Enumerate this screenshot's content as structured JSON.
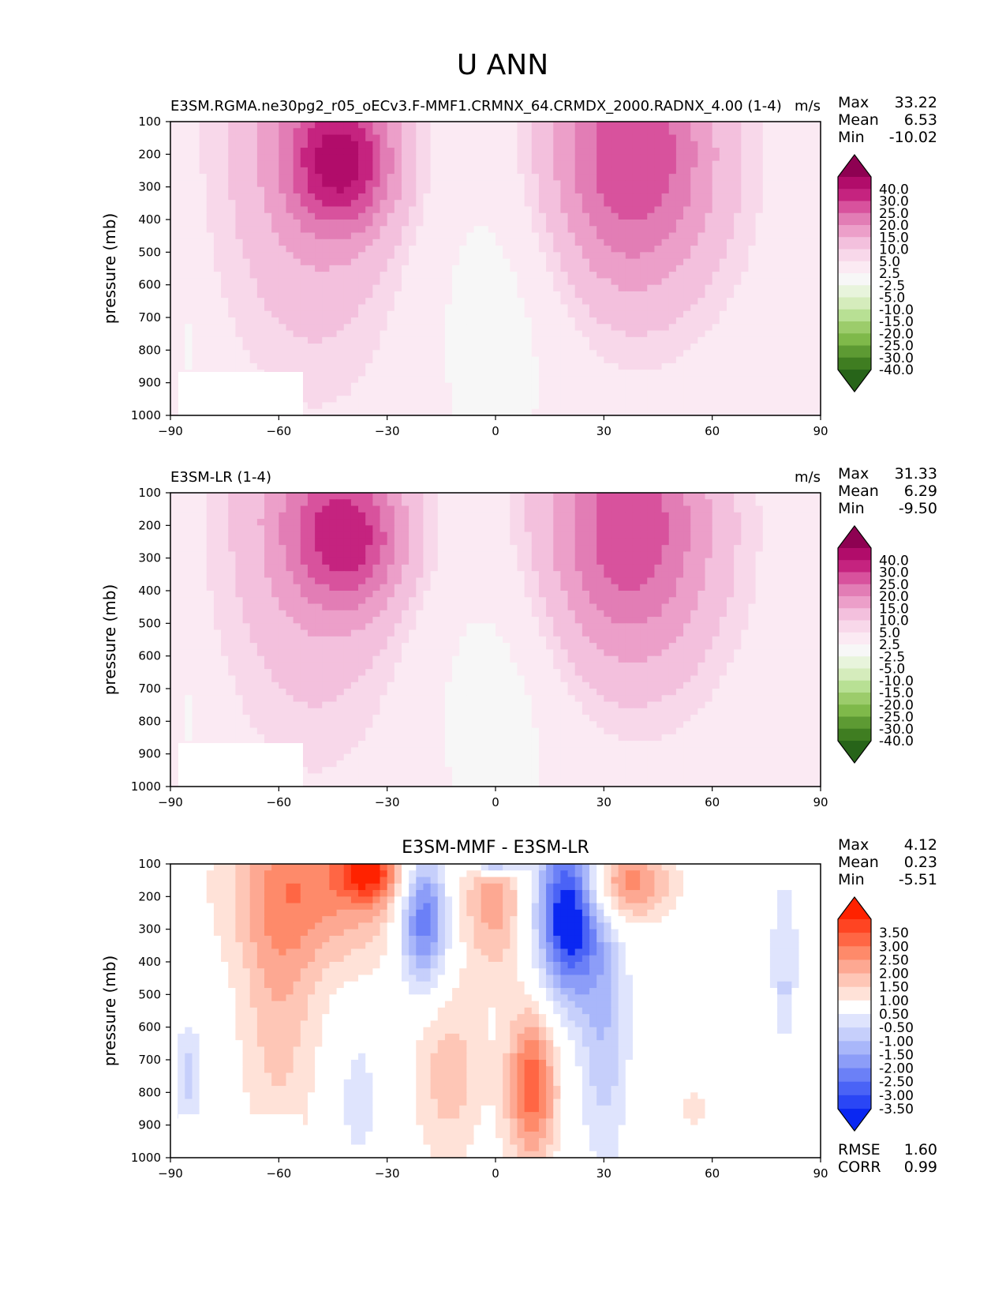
{
  "figure": {
    "title": "U ANN"
  },
  "chart_data": [
    {
      "type": "contour",
      "id": "test",
      "title": "E3SM.RGMA.ne30pg2_r05_oECv3.F-MMF1.CRMNX_64.CRMDX_2000.RADNX_4.00 (1-4)",
      "units": "m/s",
      "xlabel": "",
      "ylabel": "pressure (mb)",
      "xlim": [
        -90,
        90
      ],
      "ylim": [
        100,
        1000
      ],
      "xticks": [
        "−90",
        "−60",
        "−30",
        "0",
        "30",
        "60",
        "90"
      ],
      "yticks": [
        "100",
        "200",
        "300",
        "400",
        "500",
        "600",
        "700",
        "800",
        "900",
        "1000"
      ],
      "stats": [
        {
          "label": "Max",
          "value": "33.22"
        },
        {
          "label": "Mean",
          "value": "6.53"
        },
        {
          "label": "Min",
          "value": "-10.02"
        }
      ],
      "colorbar": {
        "labels": [
          "40.0",
          "30.0",
          "25.0",
          "20.0",
          "15.0",
          "10.0",
          "5.0",
          "2.5",
          "-2.5",
          "-5.0",
          "-10.0",
          "-15.0",
          "-20.0",
          "-25.0",
          "-30.0",
          "-40.0"
        ],
        "colors": [
          "#8e0152",
          "#b10c6a",
          "#c5237f",
          "#d8529d",
          "#e27db5",
          "#ec9fc9",
          "#f3c0dd",
          "#f8d8ea",
          "#fbeaf3",
          "#f7f7f7",
          "#e8f4dc",
          "#d5ecbc",
          "#b8e094",
          "#9ccc6b",
          "#7fb94a",
          "#5d9a33",
          "#3f7d21",
          "#276419"
        ]
      },
      "features": [
        {
          "lat": -50,
          "p": 100,
          "lat_sigma": 17,
          "p_sigma": 470,
          "value": 14,
          "p_bottom": 1000
        },
        {
          "lat": -42,
          "p": 230,
          "lat_sigma": 10,
          "p_sigma": 140,
          "value": 22
        },
        {
          "lat": 38,
          "p": 200,
          "lat_sigma": 17,
          "p_sigma": 310,
          "value": 25
        },
        {
          "lat": 0,
          "p": 700,
          "lat_sigma": 14,
          "p_sigma": 380,
          "value": -5
        },
        {
          "lat": -85,
          "p": 780,
          "lat_sigma": 2,
          "p_sigma": 100,
          "value": -4
        }
      ]
    },
    {
      "type": "contour",
      "id": "reference",
      "title": "E3SM-LR (1-4)",
      "units": "m/s",
      "xlabel": "",
      "ylabel": "pressure (mb)",
      "xlim": [
        -90,
        90
      ],
      "ylim": [
        100,
        1000
      ],
      "xticks": [
        "−90",
        "−60",
        "−30",
        "0",
        "30",
        "60",
        "90"
      ],
      "yticks": [
        "100",
        "200",
        "300",
        "400",
        "500",
        "600",
        "700",
        "800",
        "900",
        "1000"
      ],
      "stats": [
        {
          "label": "Max",
          "value": "31.33"
        },
        {
          "label": "Mean",
          "value": "6.29"
        },
        {
          "label": "Min",
          "value": "-9.50"
        }
      ],
      "colorbar": {
        "labels": [
          "40.0",
          "30.0",
          "25.0",
          "20.0",
          "15.0",
          "10.0",
          "5.0",
          "2.5",
          "-2.5",
          "-5.0",
          "-10.0",
          "-15.0",
          "-20.0",
          "-25.0",
          "-30.0",
          "-40.0"
        ],
        "colors": [
          "#8e0152",
          "#b10c6a",
          "#c5237f",
          "#d8529d",
          "#e27db5",
          "#ec9fc9",
          "#f3c0dd",
          "#f8d8ea",
          "#fbeaf3",
          "#f7f7f7",
          "#e8f4dc",
          "#d5ecbc",
          "#b8e094",
          "#9ccc6b",
          "#7fb94a",
          "#5d9a33",
          "#3f7d21",
          "#276419"
        ]
      },
      "features": [
        {
          "lat": -50,
          "p": 100,
          "lat_sigma": 17,
          "p_sigma": 470,
          "value": 13,
          "p_bottom": 1000
        },
        {
          "lat": -40,
          "p": 240,
          "lat_sigma": 11,
          "p_sigma": 150,
          "value": 19
        },
        {
          "lat": 37,
          "p": 210,
          "lat_sigma": 17,
          "p_sigma": 310,
          "value": 24
        },
        {
          "lat": 0,
          "p": 750,
          "lat_sigma": 14,
          "p_sigma": 340,
          "value": -5
        },
        {
          "lat": -85,
          "p": 780,
          "lat_sigma": 2,
          "p_sigma": 100,
          "value": -4
        }
      ]
    },
    {
      "type": "contour",
      "id": "difference",
      "title": "E3SM-MMF - E3SM-LR",
      "units": "",
      "xlabel": "",
      "ylabel": "pressure (mb)",
      "xlim": [
        -90,
        90
      ],
      "ylim": [
        100,
        1000
      ],
      "xticks": [
        "−90",
        "−60",
        "−30",
        "0",
        "30",
        "60",
        "90"
      ],
      "yticks": [
        "100",
        "200",
        "300",
        "400",
        "500",
        "600",
        "700",
        "800",
        "900",
        "1000"
      ],
      "stats": [
        {
          "label": "Max",
          "value": "4.12"
        },
        {
          "label": "Mean",
          "value": "0.23"
        },
        {
          "label": "Min",
          "value": "-5.51"
        }
      ],
      "metrics": [
        {
          "label": "RMSE",
          "value": "1.60"
        },
        {
          "label": "CORR",
          "value": "0.99"
        }
      ],
      "colorbar": {
        "labels": [
          "3.50",
          "3.00",
          "2.50",
          "2.00",
          "1.50",
          "1.00",
          "0.50",
          "-0.50",
          "-1.00",
          "-1.50",
          "-2.00",
          "-2.50",
          "-3.00",
          "-3.50"
        ],
        "colors": [
          "#ff2200",
          "#ff4422",
          "#ff6644",
          "#fe8a6a",
          "#fda892",
          "#fec6b6",
          "#ffe2d8",
          "#ffffff",
          "#dfe4fd",
          "#c6cffb",
          "#a9b7fa",
          "#8c9df8",
          "#6b80f7",
          "#4a63f6",
          "#2a46f5",
          "#0a27f2"
        ]
      },
      "features": [
        {
          "lat": -45,
          "p": 160,
          "lat_sigma": 20,
          "p_sigma": 180,
          "value": 2.0
        },
        {
          "lat": -35,
          "p": 130,
          "lat_sigma": 6,
          "p_sigma": 60,
          "value": 2.2
        },
        {
          "lat": -60,
          "p": 500,
          "lat_sigma": 8,
          "p_sigma": 380,
          "value": 1.3
        },
        {
          "lat": -20,
          "p": 260,
          "lat_sigma": 5,
          "p_sigma": 150,
          "value": -3.6
        },
        {
          "lat": 0,
          "p": 220,
          "lat_sigma": 6,
          "p_sigma": 160,
          "value": 1.6
        },
        {
          "lat": 20,
          "p": 250,
          "lat_sigma": 6,
          "p_sigma": 180,
          "value": -4.3
        },
        {
          "lat": 36,
          "p": 160,
          "lat_sigma": 9,
          "p_sigma": 80,
          "value": 2.4
        },
        {
          "lat": 30,
          "p": 600,
          "lat_sigma": 5,
          "p_sigma": 300,
          "value": -1.4
        },
        {
          "lat": 10,
          "p": 780,
          "lat_sigma": 5,
          "p_sigma": 170,
          "value": 2.9
        },
        {
          "lat": -13,
          "p": 740,
          "lat_sigma": 7,
          "p_sigma": 200,
          "value": 1.3
        },
        {
          "lat": 0,
          "p": 85,
          "lat_sigma": 5,
          "p_sigma": 30,
          "value": -3.5
        },
        {
          "lat": 80,
          "p": 320,
          "lat_sigma": 3,
          "p_sigma": 160,
          "value": -0.8
        },
        {
          "lat": 80,
          "p": 530,
          "lat_sigma": 2,
          "p_sigma": 100,
          "value": -0.7
        },
        {
          "lat": -85,
          "p": 750,
          "lat_sigma": 3,
          "p_sigma": 120,
          "value": -1.2
        },
        {
          "lat": -38,
          "p": 820,
          "lat_sigma": 4,
          "p_sigma": 160,
          "value": -0.8
        },
        {
          "lat": 55,
          "p": 850,
          "lat_sigma": 2,
          "p_sigma": 40,
          "value": 1.0
        }
      ]
    }
  ]
}
